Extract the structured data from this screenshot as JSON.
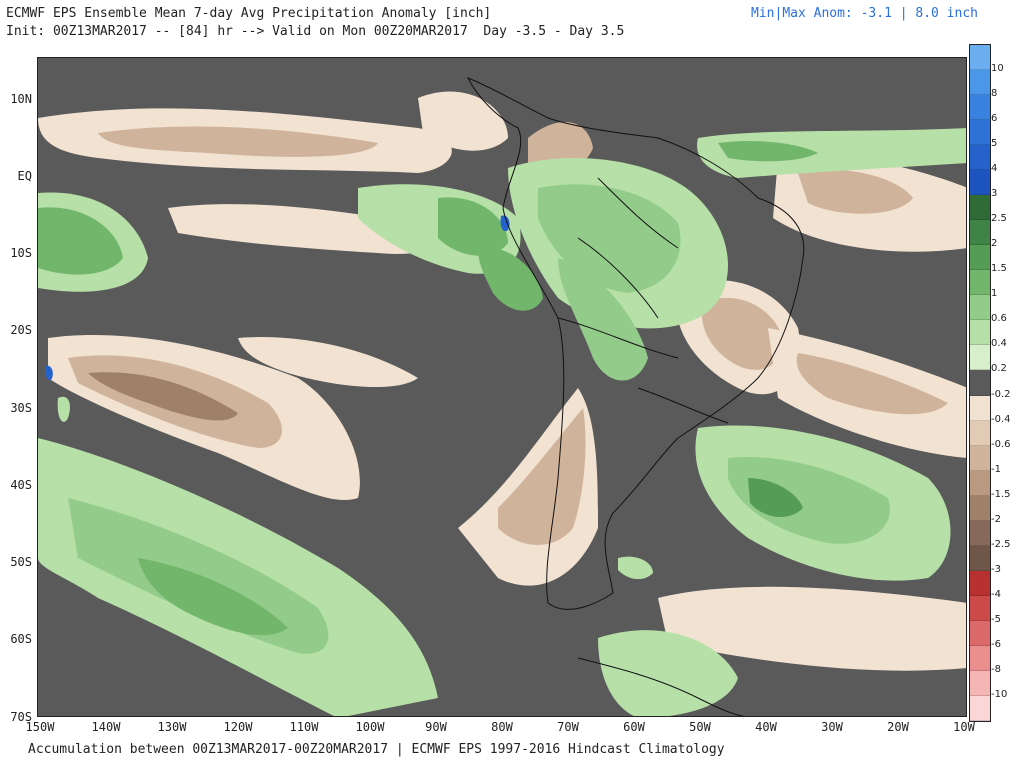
{
  "header": {
    "title_line1": "ECMWF EPS Ensemble Mean 7-day Avg Precipitation Anomaly [inch]",
    "title_line2": "Init: 00Z13MAR2017 -- [84] hr --> Valid on Mon 00Z20MAR2017  Day -3.5 - Day 3.5",
    "minmax": "Min|Max Anom: -3.1 | 8.0 inch"
  },
  "footer": {
    "text": "Accumulation between 00Z13MAR2017-00Z20MAR2017 | ECMWF EPS 1997-2016 Hindcast Climatology"
  },
  "axes": {
    "lat_labels": [
      "10N",
      "EQ",
      "10S",
      "20S",
      "30S",
      "40S",
      "50S",
      "60S",
      "70S"
    ],
    "lon_labels": [
      "150W",
      "140W",
      "130W",
      "120W",
      "110W",
      "100W",
      "90W",
      "80W",
      "70W",
      "60W",
      "50W",
      "40W",
      "30W",
      "20W",
      "10W"
    ]
  },
  "colorbar": {
    "labels": [
      "10",
      "8",
      "6",
      "5",
      "4",
      "3",
      "2.5",
      "2",
      "1.5",
      "1",
      "0.6",
      "0.4",
      "0.2",
      "-0.2",
      "-0.4",
      "-0.6",
      "-1",
      "-1.5",
      "-2",
      "-2.5",
      "-3",
      "-4",
      "-5",
      "-6",
      "-8",
      "-10"
    ],
    "colors": [
      "#6aaef0",
      "#4a96e8",
      "#3a82e0",
      "#2f72d8",
      "#2662cc",
      "#1e54c0",
      "#2e6b36",
      "#3f8446",
      "#559c56",
      "#72b66c",
      "#93cc8a",
      "#b6e0a8",
      "#d8efcb",
      "#5a5a5a",
      "#f2e2d2",
      "#e2cbb4",
      "#cfb39a",
      "#b99a80",
      "#9f8068",
      "#86695a",
      "#6e5648",
      "#b83030",
      "#cc4a4a",
      "#dd6a6a",
      "#eb8e8e",
      "#f5b5b5",
      "#fbd6d6"
    ]
  },
  "colors": {
    "land_no_anom": "#5a5a5a",
    "wet_light": "#b6e0a8",
    "wet_mid": "#72b66c",
    "wet_dark": "#3f8446",
    "dry_light": "#f2e2d2",
    "dry_mid": "#cfb39a",
    "dry_dark": "#9f8068",
    "heavy_wet": "#2662cc"
  }
}
